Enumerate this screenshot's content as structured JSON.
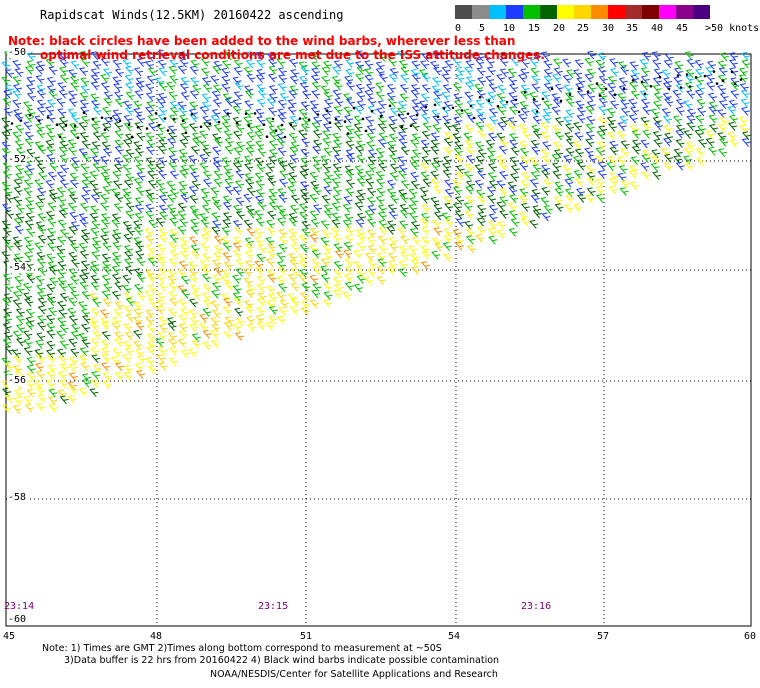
{
  "title": "Rapidscat Winds(12.5KM) 20160422 ascending",
  "note_line1": "Note: black circles have been added to the wind barbs, wherever less than",
  "note_line2": "optimal wind retrieval conditions are met due to the ISS attitude changes.",
  "legend": {
    "labels": [
      "0",
      "5",
      "10",
      "15",
      "20",
      "25",
      "30",
      "35",
      "40",
      "45",
      ">50 knots"
    ],
    "colors": [
      "#4d4d4d",
      "#8c8c8c",
      "#00bfff",
      "#1e3cff",
      "#00c000",
      "#006400",
      "#ffff00",
      "#ffd700",
      "#ff8c00",
      "#ff0000",
      "#a52a2a",
      "#800000",
      "#ff00ff",
      "#8b008b",
      "#4b0082"
    ]
  },
  "map": {
    "lat_labels": [
      "-50",
      "-52",
      "-54",
      "-56",
      "-58",
      "-60"
    ],
    "lon_labels": [
      "45",
      "48",
      "51",
      "54",
      "57",
      "60"
    ],
    "time_labels": [
      "23:14",
      "23:15",
      "23:16"
    ]
  },
  "footer": {
    "line1": "Note: 1) Times are GMT 2)Times along bottom correspond to measurement at ~50S",
    "line2": "3)Data buffer is 22 hrs from 20160422 4) Black wind barbs indicate possible contamination",
    "line3": "NOAA/NESDIS/Center for Satellite Applications and Research"
  }
}
